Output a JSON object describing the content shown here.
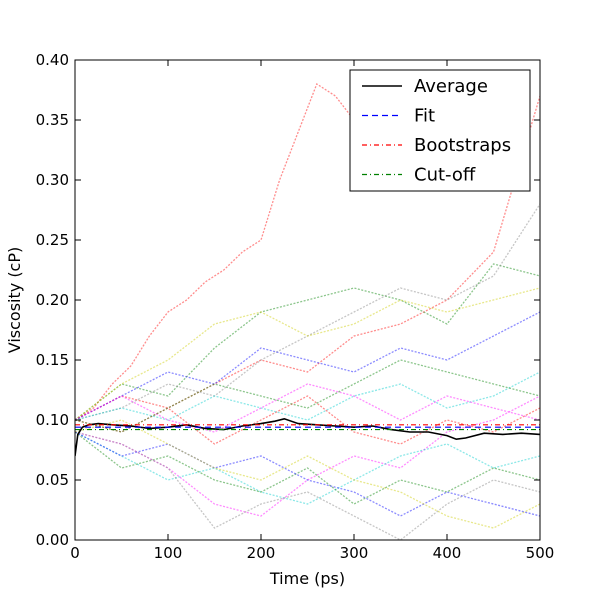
{
  "chart_data": {
    "type": "line",
    "title": "",
    "xlabel": "Time (ps)",
    "ylabel": "Viscosity (cP)",
    "xlim": [
      0,
      500
    ],
    "ylim": [
      0.0,
      0.4
    ],
    "xticks": [
      0,
      100,
      200,
      300,
      400,
      500
    ],
    "xtick_labels": [
      "0",
      "100",
      "200",
      "300",
      "400",
      "500"
    ],
    "yticks": [
      0.0,
      0.05,
      0.1,
      0.15,
      0.2,
      0.25,
      0.3,
      0.35,
      0.4
    ],
    "ytick_labels": [
      "0.00",
      "0.05",
      "0.10",
      "0.15",
      "0.20",
      "0.25",
      "0.30",
      "0.35",
      "0.40"
    ],
    "grid": false,
    "legend": {
      "position": "top-right",
      "entries": [
        {
          "label": "Average",
          "style": "solid",
          "color": "#000000"
        },
        {
          "label": "Fit",
          "style": "dashed",
          "color": "#0000ff"
        },
        {
          "label": "Bootstraps",
          "style": "dashdot",
          "color": "#ff0000"
        },
        {
          "label": "Cut-off",
          "style": "dashdot",
          "color": "#008000"
        }
      ]
    },
    "series": [
      {
        "name": "Average",
        "color": "#000000",
        "style": "solid",
        "x": [
          0,
          3,
          8,
          15,
          25,
          40,
          60,
          80,
          100,
          120,
          140,
          160,
          180,
          200,
          215,
          225,
          240,
          260,
          280,
          300,
          320,
          340,
          360,
          380,
          400,
          410,
          420,
          440,
          460,
          480,
          500
        ],
        "y": [
          0.07,
          0.088,
          0.094,
          0.096,
          0.097,
          0.096,
          0.095,
          0.093,
          0.094,
          0.096,
          0.093,
          0.092,
          0.095,
          0.097,
          0.099,
          0.101,
          0.097,
          0.096,
          0.095,
          0.094,
          0.095,
          0.092,
          0.09,
          0.09,
          0.087,
          0.084,
          0.085,
          0.089,
          0.088,
          0.089,
          0.088
        ]
      },
      {
        "name": "Fit",
        "color": "#0000ff",
        "style": "dashed",
        "x": [
          0,
          500
        ],
        "y": [
          0.094,
          0.094
        ]
      },
      {
        "name": "Bootstraps",
        "color": "#ff0000",
        "style": "dashdot",
        "x": [
          0,
          500
        ],
        "y": [
          0.096,
          0.096
        ]
      },
      {
        "name": "Cut-off",
        "color": "#008000",
        "style": "dashdot",
        "x": [
          0,
          500
        ],
        "y": [
          0.092,
          0.092
        ]
      }
    ],
    "bootstrap_traces": [
      {
        "color": "#ff0000",
        "x": [
          0,
          20,
          40,
          60,
          80,
          100,
          120,
          140,
          160,
          180,
          200,
          220,
          240,
          260,
          280,
          300,
          320,
          340
        ],
        "y": [
          0.1,
          0.11,
          0.13,
          0.145,
          0.17,
          0.19,
          0.2,
          0.215,
          0.225,
          0.24,
          0.25,
          0.3,
          0.34,
          0.38,
          0.37,
          0.35,
          0.33,
          0.3
        ]
      },
      {
        "color": "#ff0000",
        "x": [
          0,
          50,
          100,
          150,
          200,
          250,
          300,
          350,
          400,
          450,
          500
        ],
        "y": [
          0.1,
          0.12,
          0.11,
          0.13,
          0.15,
          0.14,
          0.17,
          0.18,
          0.2,
          0.24,
          0.37
        ]
      },
      {
        "color": "#008000",
        "x": [
          0,
          50,
          100,
          150,
          200,
          250,
          300,
          350,
          400,
          450,
          500
        ],
        "y": [
          0.1,
          0.13,
          0.12,
          0.16,
          0.19,
          0.2,
          0.21,
          0.2,
          0.18,
          0.23,
          0.22
        ]
      },
      {
        "color": "#808080",
        "x": [
          0,
          50,
          100,
          150,
          200,
          250,
          300,
          350,
          400,
          450,
          500
        ],
        "y": [
          0.1,
          0.11,
          0.13,
          0.12,
          0.15,
          0.17,
          0.19,
          0.21,
          0.2,
          0.22,
          0.28
        ]
      },
      {
        "color": "#0000ff",
        "x": [
          0,
          50,
          100,
          150,
          200,
          250,
          300,
          350,
          400,
          450,
          500
        ],
        "y": [
          0.1,
          0.12,
          0.14,
          0.13,
          0.16,
          0.15,
          0.14,
          0.16,
          0.15,
          0.17,
          0.19
        ]
      },
      {
        "color": "#cccc00",
        "x": [
          0,
          50,
          100,
          150,
          200,
          250,
          300,
          350,
          400,
          450,
          500
        ],
        "y": [
          0.1,
          0.13,
          0.15,
          0.18,
          0.19,
          0.17,
          0.18,
          0.2,
          0.19,
          0.2,
          0.21
        ]
      },
      {
        "color": "#ff00ff",
        "x": [
          0,
          50,
          100,
          150,
          200,
          250,
          300,
          350,
          400,
          450,
          500
        ],
        "y": [
          0.09,
          0.08,
          0.06,
          0.03,
          0.02,
          0.05,
          0.07,
          0.06,
          0.09,
          0.1,
          0.12
        ]
      },
      {
        "color": "#00cccc",
        "x": [
          0,
          50,
          100,
          150,
          200,
          250,
          300,
          350,
          400,
          450,
          500
        ],
        "y": [
          0.09,
          0.07,
          0.05,
          0.06,
          0.04,
          0.03,
          0.05,
          0.07,
          0.08,
          0.06,
          0.07
        ]
      },
      {
        "color": "#008000",
        "x": [
          0,
          50,
          100,
          150,
          200,
          250,
          300,
          350,
          400,
          450,
          500
        ],
        "y": [
          0.09,
          0.06,
          0.07,
          0.05,
          0.04,
          0.06,
          0.03,
          0.05,
          0.04,
          0.06,
          0.05
        ]
      },
      {
        "color": "#808080",
        "x": [
          0,
          50,
          100,
          150,
          200,
          250,
          300,
          350,
          400,
          450,
          500
        ],
        "y": [
          0.09,
          0.08,
          0.06,
          0.01,
          0.03,
          0.04,
          0.02,
          0.0,
          0.03,
          0.05,
          0.04
        ]
      },
      {
        "color": "#0000ff",
        "x": [
          0,
          50,
          100,
          150,
          200,
          250,
          300,
          350,
          400,
          450,
          500
        ],
        "y": [
          0.09,
          0.07,
          0.08,
          0.06,
          0.07,
          0.05,
          0.04,
          0.02,
          0.04,
          0.03,
          0.02
        ]
      },
      {
        "color": "#ff0000",
        "x": [
          0,
          50,
          100,
          150,
          200,
          250,
          300,
          350,
          400,
          450,
          500
        ],
        "y": [
          0.1,
          0.09,
          0.11,
          0.08,
          0.1,
          0.12,
          0.09,
          0.08,
          0.1,
          0.09,
          0.11
        ]
      },
      {
        "color": "#cccc00",
        "x": [
          0,
          50,
          100,
          150,
          200,
          250,
          300,
          350,
          400,
          450,
          500
        ],
        "y": [
          0.09,
          0.1,
          0.08,
          0.06,
          0.05,
          0.07,
          0.05,
          0.04,
          0.02,
          0.01,
          0.03
        ]
      },
      {
        "color": "#00cccc",
        "x": [
          0,
          50,
          100,
          150,
          200,
          250,
          300,
          350,
          400,
          450,
          500
        ],
        "y": [
          0.1,
          0.11,
          0.1,
          0.12,
          0.11,
          0.1,
          0.12,
          0.13,
          0.11,
          0.12,
          0.14
        ]
      },
      {
        "color": "#ff00ff",
        "x": [
          0,
          50,
          100,
          150,
          200,
          250,
          300,
          350,
          400,
          450,
          500
        ],
        "y": [
          0.1,
          0.12,
          0.1,
          0.09,
          0.11,
          0.13,
          0.12,
          0.1,
          0.12,
          0.11,
          0.1
        ]
      },
      {
        "color": "#008000",
        "x": [
          0,
          50,
          100,
          150,
          200,
          250,
          300,
          350,
          400,
          450,
          500
        ],
        "y": [
          0.1,
          0.09,
          0.11,
          0.13,
          0.12,
          0.11,
          0.13,
          0.15,
          0.14,
          0.13,
          0.12
        ]
      }
    ]
  }
}
